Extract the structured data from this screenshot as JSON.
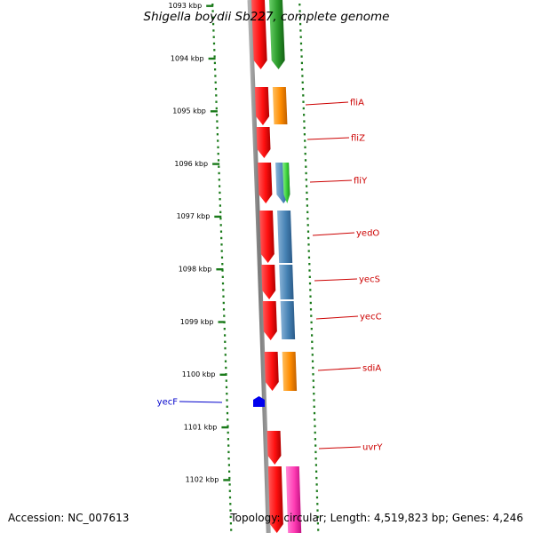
{
  "title": "Shigella boydii Sb227, complete genome",
  "footer": {
    "accession": "Accession: NC_007613",
    "summary": "Topology: circular; Length: 4,519,823 bp; Genes: 4,246"
  },
  "colors": {
    "backbone": "#8c8c8c",
    "tick": "#1a7a1a",
    "cds": "#ff1010",
    "gene": "#ff1010",
    "go_orange": "#ff8c00",
    "go_green": "#2eaa2e",
    "go_blue": "#4682b4",
    "go_pink": "#ff3cb4",
    "go_lime": "#3cd23c",
    "label_forward": "#cc0000",
    "label_reverse": "#0000cc",
    "reverse_gene": "#0000ee"
  },
  "ticks": [
    {
      "label": "1093 kbp"
    },
    {
      "label": "1094 kbp"
    },
    {
      "label": "1095 kbp"
    },
    {
      "label": "1096 kbp"
    },
    {
      "label": "1097 kbp"
    },
    {
      "label": "1098 kbp"
    },
    {
      "label": "1099 kbp"
    },
    {
      "label": "1100 kbp"
    },
    {
      "label": "1101 kbp"
    },
    {
      "label": "1102 kbp"
    }
  ],
  "genes": [
    {
      "name": "fliA"
    },
    {
      "name": "fliZ"
    },
    {
      "name": "fliY"
    },
    {
      "name": "yedO"
    },
    {
      "name": "yecS"
    },
    {
      "name": "yecC"
    },
    {
      "name": "sdiA"
    },
    {
      "name": "yecF"
    },
    {
      "name": "uvrY"
    }
  ]
}
